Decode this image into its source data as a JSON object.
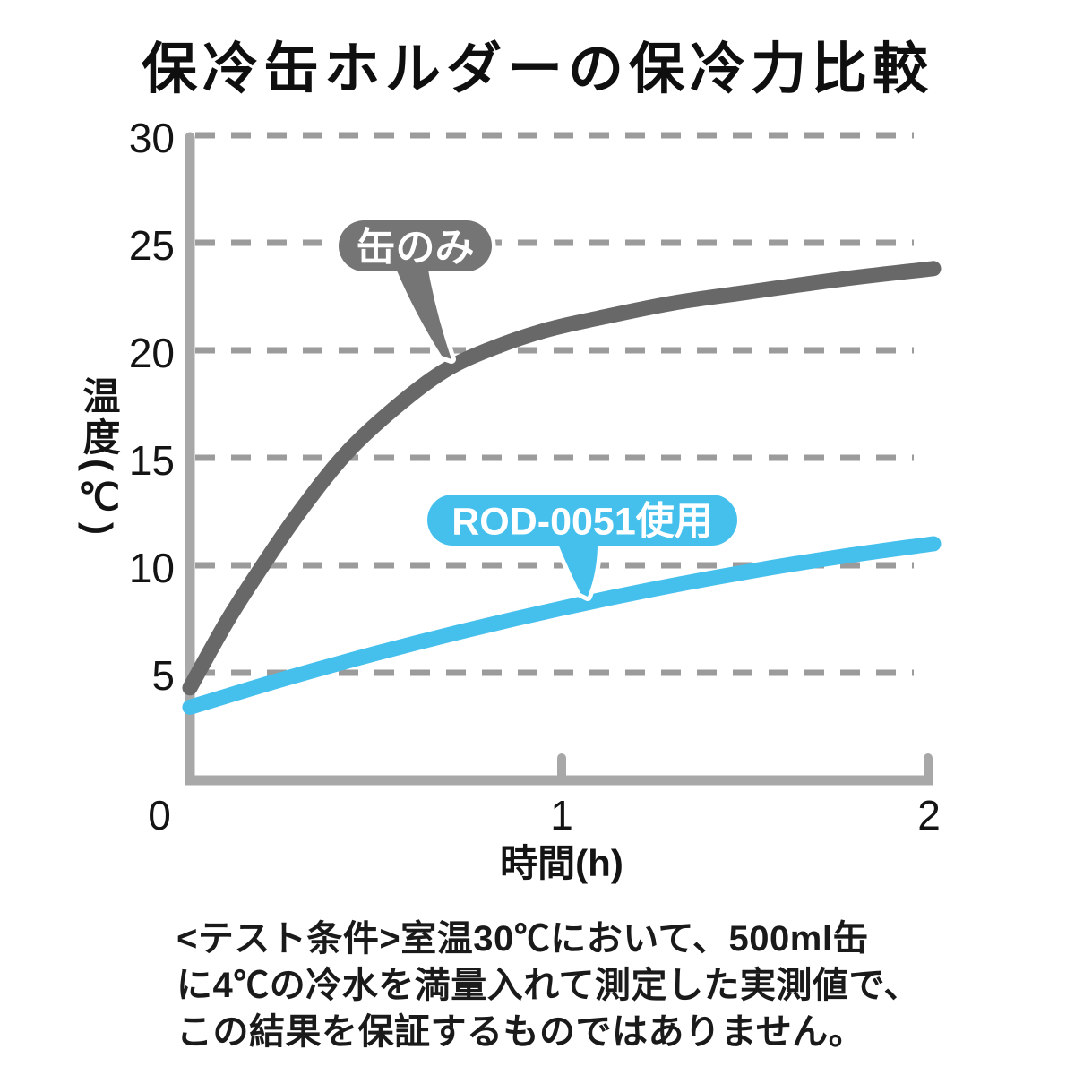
{
  "title": "保冷缶ホルダーの保冷力比較",
  "chart_data": {
    "type": "line",
    "title": "保冷缶ホルダーの保冷力比較",
    "xlabel": "時間(h)",
    "ylabel": "温度(℃)",
    "xlim": [
      0,
      2
    ],
    "ylim": [
      0,
      30
    ],
    "x_ticks": [
      0,
      1,
      2
    ],
    "y_ticks": [
      30,
      25,
      20,
      15,
      10,
      5
    ],
    "gridline_values": [
      30,
      25,
      20,
      15,
      10,
      5
    ],
    "grid_style": "dashed",
    "legend_position": "inline-callouts",
    "series": [
      {
        "name": "缶のみ",
        "color": "#686868",
        "x": [
          0,
          0.1,
          0.2,
          0.3,
          0.42,
          0.55,
          0.68,
          0.8,
          0.95,
          1.1,
          1.3,
          1.5,
          1.75,
          2.0
        ],
        "values": [
          4.3,
          7.4,
          10.1,
          12.6,
          15.2,
          17.3,
          19.0,
          20.0,
          20.9,
          21.5,
          22.2,
          22.7,
          23.3,
          23.8
        ]
      },
      {
        "name": "ROD-0051使用",
        "color": "#45c0ed",
        "x": [
          0,
          0.25,
          0.5,
          0.75,
          1.0,
          1.25,
          1.5,
          1.75,
          2.0
        ],
        "values": [
          3.4,
          4.7,
          5.9,
          7.0,
          8.0,
          8.9,
          9.7,
          10.4,
          11.0
        ]
      }
    ],
    "annotations": [
      {
        "label": "缶のみ",
        "bubble_color": "#757575",
        "text_color": "#ffffff",
        "points_to": {
          "x": 0.7,
          "y": 20
        }
      },
      {
        "label": "ROD-0051使用",
        "bubble_color": "#45c0ed",
        "text_color": "#ffffff",
        "points_to": {
          "x": 1.07,
          "y": 8.3
        }
      }
    ]
  },
  "footer": {
    "lines": [
      "<テスト条件>室温30℃において、500ml缶",
      "に4℃の冷水を満量入れて測定した実測値で、",
      "この結果を保証するものではありません。"
    ]
  },
  "colors": {
    "background": "#ffffff",
    "axis": "#a8a8a8",
    "grid": "#9b9b9b",
    "text": "#141414",
    "series_can_only": "#686868",
    "series_rod0051": "#45c0ed"
  }
}
